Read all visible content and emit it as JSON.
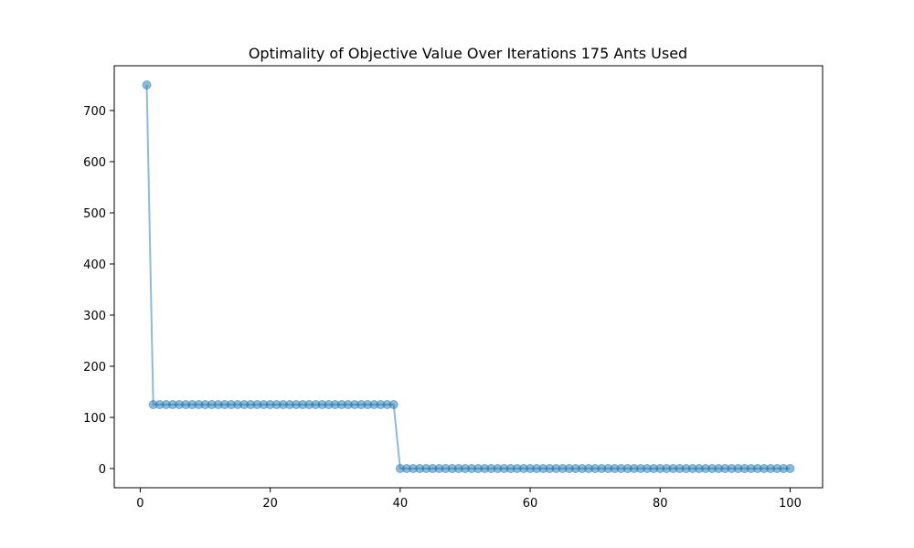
{
  "chart_data": {
    "type": "line",
    "title": "Optimality of Objective Value Over Iterations 175 Ants Used",
    "xlabel": "",
    "ylabel": "",
    "xlim": [
      -4,
      105
    ],
    "ylim": [
      -37.5,
      787.5
    ],
    "xticks": [
      0,
      20,
      40,
      60,
      80,
      100
    ],
    "yticks": [
      0,
      100,
      200,
      300,
      400,
      500,
      600,
      700
    ],
    "grid": false,
    "color": "#1f77b4",
    "segments": [
      {
        "x_start": 1,
        "x_end": 1,
        "y": 750
      },
      {
        "x_start": 2,
        "x_end": 39,
        "y": 125
      },
      {
        "x_start": 40,
        "x_end": 100,
        "y": 0
      }
    ]
  }
}
